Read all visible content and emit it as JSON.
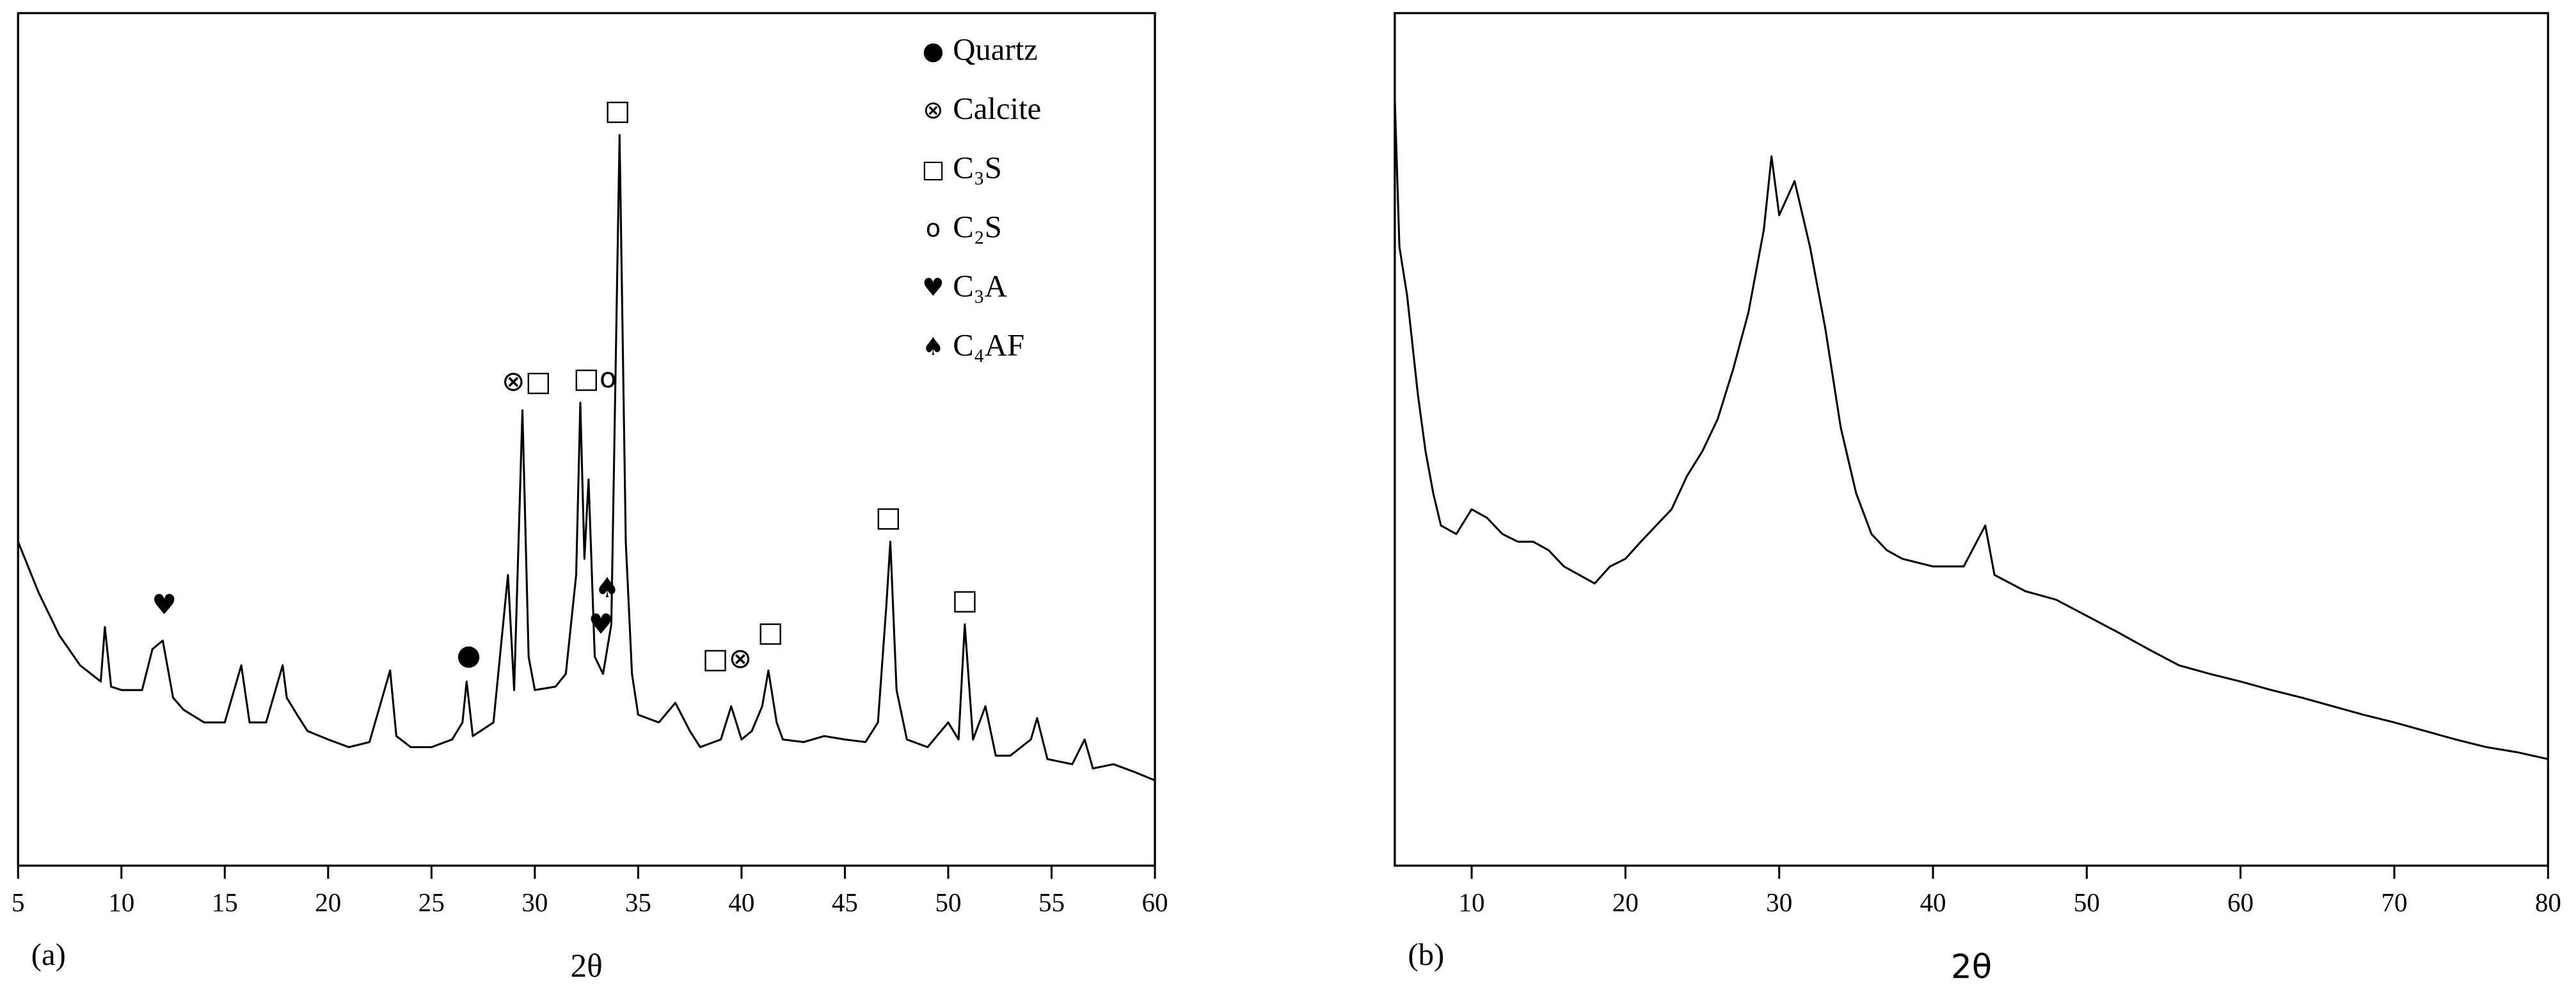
{
  "chart_data": [
    {
      "type": "line",
      "panel_label": "(a)",
      "xlabel": "2θ",
      "color": "#000000",
      "xlim": [
        5,
        60
      ],
      "ylim": [
        0,
        100
      ],
      "xticks": [
        5,
        10,
        15,
        20,
        25,
        30,
        35,
        40,
        45,
        50,
        55,
        60
      ],
      "x": [
        5,
        6,
        7,
        8,
        9,
        9.2,
        9.5,
        10,
        11,
        11.5,
        12,
        12.5,
        13,
        14,
        15,
        15.8,
        16.2,
        17,
        17.8,
        18,
        18.5,
        19,
        20,
        21,
        22,
        23,
        23.3,
        24,
        25,
        26,
        26.5,
        26.7,
        27,
        28,
        28.7,
        29,
        29.4,
        29.7,
        30,
        31,
        31.5,
        32,
        32.2,
        32.4,
        32.6,
        32.9,
        33.3,
        33.7,
        34.1,
        34.4,
        34.7,
        35,
        36,
        36.8,
        37.5,
        38,
        39,
        39.5,
        40,
        40.5,
        41,
        41.3,
        41.7,
        42,
        43,
        44,
        45,
        46,
        46.6,
        47,
        47.2,
        47.5,
        48,
        49,
        50,
        50.5,
        50.8,
        51.2,
        51.8,
        52.3,
        53,
        54,
        54.3,
        54.8,
        56,
        56.6,
        57,
        58,
        59,
        60
      ],
      "values": [
        38,
        32,
        27,
        23.5,
        21.6,
        28,
        21,
        20.6,
        20.6,
        25.4,
        26.4,
        19.7,
        18.3,
        16.8,
        16.8,
        23.5,
        16.8,
        16.8,
        23.5,
        19.7,
        17.7,
        15.8,
        14.8,
        13.9,
        14.5,
        22.9,
        15.2,
        13.9,
        13.9,
        14.8,
        16.8,
        21.6,
        15.2,
        16.8,
        34.1,
        20.6,
        53.4,
        24.5,
        20.6,
        21,
        22.5,
        34.1,
        54.3,
        36,
        45.3,
        24.5,
        22.5,
        28.3,
        85.7,
        38,
        22.5,
        17.7,
        16.8,
        19.1,
        15.8,
        13.9,
        14.8,
        18.7,
        14.8,
        15.8,
        18.7,
        22.9,
        16.8,
        14.8,
        14.5,
        15.2,
        14.8,
        14.5,
        16.8,
        30.3,
        38,
        20.6,
        14.8,
        13.9,
        16.8,
        14.8,
        28.3,
        14.8,
        18.7,
        12.9,
        12.9,
        14.8,
        17.3,
        12.5,
        11.9,
        14.8,
        11.4,
        11.9,
        11,
        10
      ],
      "annotations": [
        {
          "text": "♥",
          "x": 12.07,
          "y": 30.4
        },
        {
          "text": "●",
          "x": 26.8,
          "y": 24.5
        },
        {
          "text": "⊗□",
          "x": 29.6,
          "y": 56.6
        },
        {
          "text": "□o",
          "x": 32.9,
          "y": 57
        },
        {
          "text": "□",
          "x": 34,
          "y": 88.4
        },
        {
          "text": "♠",
          "x": 33.5,
          "y": 32.4
        },
        {
          "text": "♥",
          "x": 33.2,
          "y": 28.1
        },
        {
          "text": "□⊗",
          "x": 39.3,
          "y": 24.1
        },
        {
          "text": "□",
          "x": 41.4,
          "y": 27.2
        },
        {
          "text": "□",
          "x": 47.1,
          "y": 40.7
        },
        {
          "text": "□",
          "x": 50.8,
          "y": 31
        }
      ],
      "legend": [
        {
          "symbol": "●",
          "label": "Quartz"
        },
        {
          "symbol": "⊗",
          "label": "Calcite"
        },
        {
          "symbol": "□",
          "label": "C₃S"
        },
        {
          "symbol": "o",
          "label": "C₂S"
        },
        {
          "symbol": "♥",
          "label": "C₃A"
        },
        {
          "symbol": "♠",
          "label": "C₄AF"
        }
      ]
    },
    {
      "type": "line",
      "panel_label": "(b)",
      "xlabel": "2θ",
      "color": "#000000",
      "xlim": [
        5,
        80
      ],
      "ylim": [
        0,
        100
      ],
      "xticks": [
        10,
        20,
        30,
        40,
        50,
        60,
        70,
        80
      ],
      "x": [
        5,
        5.3,
        5.8,
        6.5,
        7,
        7.5,
        8,
        9,
        10,
        11,
        12,
        13,
        14,
        15,
        16,
        17,
        18,
        19,
        20,
        21,
        22,
        23,
        24,
        25,
        26,
        27,
        28,
        29,
        29.5,
        30,
        31,
        32,
        33,
        34,
        35,
        36,
        37,
        38,
        40,
        42,
        43.4,
        44,
        46,
        48,
        50,
        52,
        54,
        56,
        58,
        60,
        62,
        64,
        66,
        68,
        70,
        72,
        74,
        76,
        78,
        80
      ],
      "values": [
        90,
        72.6,
        66.9,
        55.3,
        48.6,
        43.7,
        39.9,
        38.9,
        41.8,
        40.8,
        38.9,
        38,
        38,
        37,
        35.1,
        34.1,
        33.1,
        35.1,
        36,
        38,
        39.9,
        41.8,
        45.7,
        48.6,
        52.4,
        58.2,
        64.9,
        74.6,
        83.2,
        76.3,
        80.3,
        72.6,
        63,
        51.4,
        43.7,
        38.9,
        37,
        36,
        35.1,
        35.1,
        39.9,
        34.1,
        32.2,
        31.2,
        29.3,
        27.4,
        25.4,
        23.5,
        22.5,
        21.6,
        20.6,
        19.7,
        18.7,
        17.7,
        16.8,
        15.8,
        14.8,
        13.9,
        13.3,
        12.5
      ]
    }
  ]
}
